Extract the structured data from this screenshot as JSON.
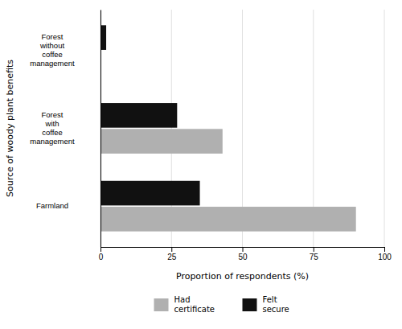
{
  "chart_data": {
    "type": "bar",
    "orientation": "horizontal",
    "xlabel": "Proportion of respondents (%)",
    "ylabel": "Source of woody plant benefits",
    "categories": [
      "Farmland",
      "Forest\nwith\ncoffee\nmanagement",
      "Forest\nwithout\ncoffee\nmanagement"
    ],
    "series": [
      {
        "name": "Had\ncertificate",
        "color": "#b0b0b0",
        "values": [
          90.0,
          43.0,
          0.0
        ]
      },
      {
        "name": "Felt\nsecure",
        "color": "#111111",
        "values": [
          35.0,
          27.0,
          2.0
        ]
      }
    ],
    "xlim": [
      0,
      100
    ],
    "xticks": [
      0,
      25,
      50,
      75,
      100
    ],
    "grid": true,
    "legend": "bottom"
  }
}
